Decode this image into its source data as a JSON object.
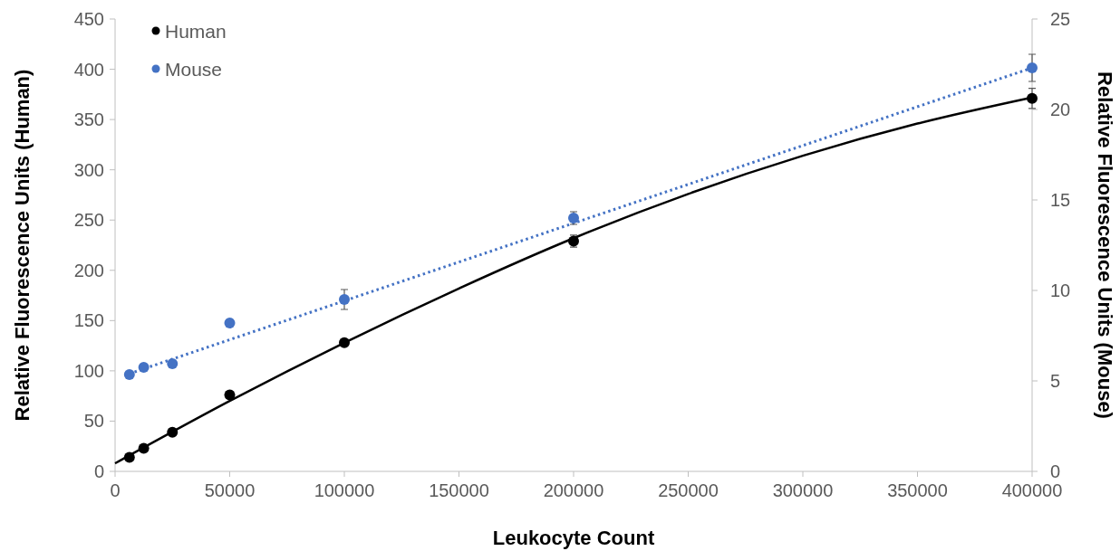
{
  "chart_data": {
    "type": "scatter",
    "xlabel": "Leukocyte Count",
    "ylabel": "Relative Fluorescence Units (Human)",
    "y2label": "Relative Fluorescence Units (Mouse)",
    "xlim": [
      0,
      400000
    ],
    "xticks": [
      0,
      50000,
      100000,
      150000,
      200000,
      250000,
      300000,
      350000,
      400000
    ],
    "ylim": [
      0,
      450
    ],
    "yticks": [
      0,
      50,
      100,
      150,
      200,
      250,
      300,
      350,
      400,
      450
    ],
    "y2lim": [
      0,
      25
    ],
    "y2ticks": [
      0,
      5,
      10,
      15,
      20,
      25
    ],
    "legend": "top left",
    "series": [
      {
        "name": "Human",
        "marker": "circle",
        "color": "#000000",
        "x": [
          6250,
          12500,
          25000,
          50000,
          100000,
          200000,
          400000
        ],
        "values": [
          14,
          23,
          39,
          76,
          128,
          229,
          371
        ],
        "errors": [
          null,
          null,
          null,
          null,
          null,
          6,
          10
        ]
      },
      {
        "name": "Mouse",
        "marker": "circle",
        "axis": "y2",
        "color": "#4472c4",
        "x": [
          6250,
          12500,
          25000,
          50000,
          100000,
          200000,
          400000
        ],
        "values": [
          5.35,
          5.75,
          5.95,
          8.2,
          9.5,
          14.0,
          22.3
        ],
        "errors": [
          null,
          null,
          null,
          null,
          0.55,
          0.35,
          0.75
        ]
      },
      {
        "type": "line",
        "color": "#000000",
        "line_style": "solid",
        "x": [
          0,
          50000,
          100000,
          150000,
          200000,
          250000,
          300000,
          350000,
          400000
        ],
        "values": [
          8,
          70,
          128,
          182,
          232,
          276,
          314,
          346,
          372
        ]
      },
      {
        "type": "line",
        "axis": "y2",
        "color": "#4472c4",
        "line_style": "dotted",
        "x": [
          6250,
          400000
        ],
        "values": [
          5.4,
          22.3
        ]
      }
    ]
  }
}
